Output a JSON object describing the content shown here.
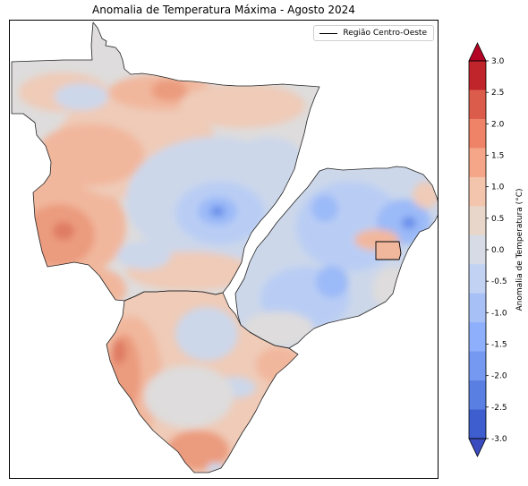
{
  "title": "Anomalia de Temperatura Máxima - Agosto 2024",
  "legend": {
    "label": "Região Centro-Oeste",
    "line_color": "#000000"
  },
  "colorbar": {
    "label": "Anomalia de Temperatura (°C)",
    "min": -3.0,
    "max": 3.0,
    "ticks": [
      "3.0",
      "2.5",
      "2.0",
      "1.5",
      "1.0",
      "0.5",
      "0.0",
      "-0.5",
      "-1.0",
      "-1.5",
      "-2.0",
      "-2.5",
      "-3.0"
    ],
    "colors_top_to_bottom": [
      "#c1252c",
      "#db5c4b",
      "#ee8367",
      "#f5a688",
      "#f4c5ad",
      "#e9d6cb",
      "#d6dbe6",
      "#c2d2f3",
      "#a7c1f7",
      "#8eb0fc",
      "#7598f1",
      "#5a7fe2",
      "#3e5ed0"
    ],
    "extend_top_color": "#b40426",
    "extend_bottom_color": "#3b4cc0"
  },
  "map_colors": {
    "neutral": "#dedcdc",
    "cool_light": "#ccd7ea",
    "cool": "#b9cdf4",
    "cool_mid": "#9bbaf8",
    "cool_strong": "#6a8fea",
    "warm_light": "#efcbb8",
    "warm": "#f1b79d",
    "warm_mid": "#eb9b7e",
    "warm_strong": "#df7b63"
  }
}
